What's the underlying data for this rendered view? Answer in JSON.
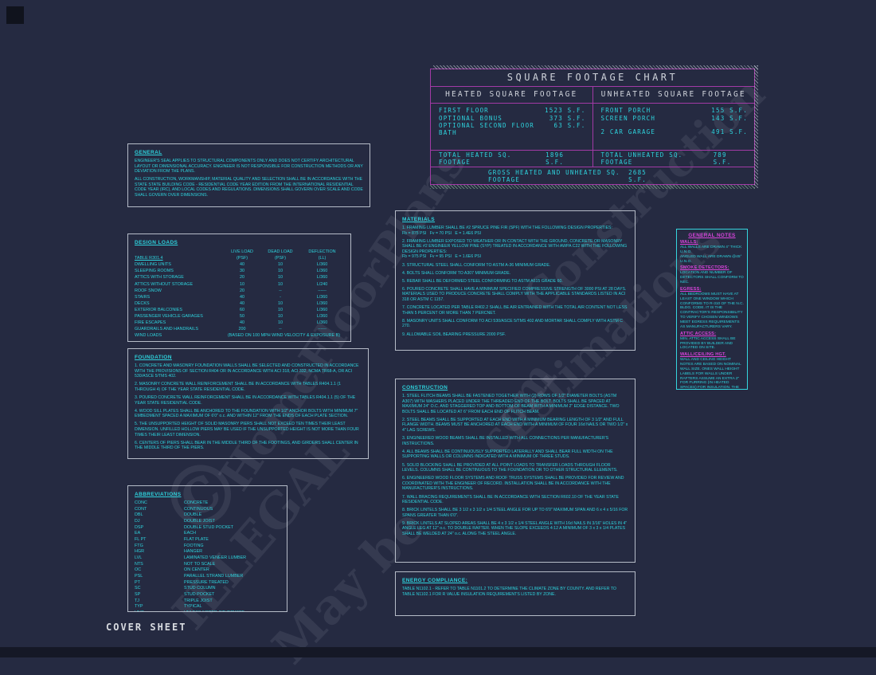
{
  "page": {
    "sheet_label": "COVER SHEET"
  },
  "watermark": {
    "fragments": [
      "©",
      "ILLEGAL",
      "HomeFloorPlans",
      "com",
      "Construction",
      "Estimations",
      "May be"
    ]
  },
  "sqft_chart": {
    "title": "SQUARE FOOTAGE CHART",
    "heated": {
      "header": "HEATED SQUARE FOOTAGE",
      "rows": [
        {
          "label": "FIRST FLOOR",
          "value": "1523 S.F."
        },
        {
          "label": "OPTIONAL BONUS",
          "value": "373 S.F."
        },
        {
          "label": "OPTIONAL SECOND FLOOR BATH",
          "value": "63 S.F."
        }
      ],
      "total_label": "TOTAL HEATED SQ. FOOTAGE",
      "total_value": "1896 S.F."
    },
    "unheated": {
      "header": "UNHEATED SQUARE FOOTAGE",
      "rows": [
        {
          "label": "FRONT PORCH",
          "value": "155 S.F."
        },
        {
          "label": "SCREEN PORCH",
          "value": "143 S.F."
        },
        {
          "label": "2 CAR GARAGE",
          "value": "491 S.F."
        }
      ],
      "total_label": "TOTAL UNHEATED SQ. FOOTAGE",
      "total_value": "789 S.F."
    },
    "gross_label": "GROSS HEATED AND UNHEATED SQ. FOOTAGE",
    "gross_value": "2685 S.F."
  },
  "general": {
    "title": "GENERAL",
    "paragraphs": [
      "ENGINEER'S SEAL APPLIES TO STRUCTURAL COMPONENTS ONLY AND DOES NOT CERTIFY ARCHITECTURAL LAYOUT OR DIMENSIONAL ACCURACY.  ENGINEER IS NOT RESPONSIBLE FOR CONSTRUCTION METHODS OR ANY DEVIATION FROM THE PLANS.",
      "ALL CONSTRUCTION, WORKMANSHIP, MATERIAL QUALITY AND SELECTION SHALL BE IN ACCORDANCE WITH THE STATE STATE BUILDING CODE - RESIDENTIAL CODE YEAR EDITION FROM THE INTERNATIONAL RESIDENTIAL CODE YEAR (IRC), AND LOCAL CODES AND REGULATIONS.  DIMENSIONS SHALL GOVERN OVER SCALE AND CODE SHALL GOVERN OVER DIMENSIONS."
    ]
  },
  "design_loads": {
    "title": "DESIGN LOADS",
    "ref": "TABLE R301.4",
    "col_headers": [
      "LIVE LOAD",
      "DEAD LOAD",
      "DEFLECTION"
    ],
    "col_subheaders": [
      "(PSF)",
      "(PSF)",
      "(LL)"
    ],
    "rows": [
      [
        "DWELLING UNITS",
        "40",
        "10",
        "L/360"
      ],
      [
        "SLEEPING ROOMS",
        "30",
        "10",
        "L/360"
      ],
      [
        "ATTICS WITH STORAGE",
        "20",
        "10",
        "L/360"
      ],
      [
        "ATTICS WITHOUT STORAGE",
        "10",
        "10",
        "L/240"
      ],
      [
        "ROOF SNOW",
        "20",
        "--",
        "------"
      ],
      [
        "STAIRS",
        "40",
        "-",
        "L/360"
      ],
      [
        "DECKS",
        "40",
        "10",
        "L/360"
      ],
      [
        "EXTERIOR BALCONIES",
        "60",
        "10",
        "L/360"
      ],
      [
        "PASSENGER VEHICLE GARAGES",
        "50",
        "10",
        "L/360"
      ],
      [
        "FIRE ESCAPES",
        "40",
        "10",
        "L/360"
      ],
      [
        "GUARDRAILS AND HANDRAILS",
        "200",
        "--",
        "------"
      ]
    ],
    "wind": [
      "WIND LOADS",
      "(BASED ON 100 MPH WIND VELOCITY & EXPOSURE B)"
    ]
  },
  "foundation": {
    "title": "FOUNDATION",
    "paragraphs": [
      "1. CONCRETE AND MASONRY FOUNDATION WALLS SHALL BE SELECTED AND CONSTRUCTED IN ACCORDANCE WITH THE PROVISIONS OF SECTION R404 OR IN ACCORDANCE WITH ACI 318, ACI 332, NCMA TR68-A, OR ACI 530/ASCE 5/TMS 402.",
      "2. MASONRY CONCRETE WALL REINFORCEMENT SHALL BE IN ACCORDANCE WITH TABLES R404.1.1 (1 THROUGH 4) OF THE YEAR STATE RESIDENTIAL CODE.",
      "3. POURED CONCRETE WALL REINFORCEMENT SHALL BE IN ACCORDANCE WITH TABLES R404.1.1 (5) OF THE YEAR STATE RESIDENTIAL CODE.",
      "4. WOOD SILL PLATES SHALL BE ANCHORED TO THE FOUNDATION WITH 1/2\" ANCHOR BOLTS WITH MINIMUM 7\" EMBEDMENT SPACED A MAXIMUM OF 6'0\" o.c. AND WITHIN 12\" FROM THE ENDS OF EACH PLATE SECTION.",
      "5. THE UNSUPPORTED HEIGHT OF SOLID MASONRY PIERS SHALL NOT EXCEED TEN TIMES THEIR LEAST DIMENSION.  UNFILLED HOLLOW PIERS MAY BE USED IF THE UNSUPPORTED HEIGHT IS NOT MORE THAN FOUR TIMES THEIR LEAST DIMENSION.",
      "6. CENTERS OF PIERS SHALL BEAR IN THE MIDDLE THIRD OF THE FOOTINGS, AND GIRDERS SHALL CENTER IN THE MIDDLE THIRD OF THE PIERS."
    ]
  },
  "abbreviations": {
    "title": "ABBREVIATIONS",
    "rows": [
      [
        "CONC",
        "CONCRETE"
      ],
      [
        "CONT",
        "CONTINUOUS"
      ],
      [
        "DBL",
        "DOUBLE"
      ],
      [
        "DJ",
        "DOUBLE JOIST"
      ],
      [
        "DSP",
        "DOUBLE STUD POCKET"
      ],
      [
        "EA",
        "EACH"
      ],
      [
        "FL PT",
        "FLAT PLATE"
      ],
      [
        "FTG",
        "FOOTING"
      ],
      [
        "HGR",
        "HANGER"
      ],
      [
        "LVL",
        "LAMINATED VENEER LUMBER"
      ],
      [
        "NTS",
        "NOT TO SCALE"
      ],
      [
        "OC",
        "ON CENTER"
      ],
      [
        "PSL",
        "PARALLEL STRAND LUMBER"
      ],
      [
        "PT",
        "PRESSURE TREATED"
      ],
      [
        "SC",
        "STUD COLUMN"
      ],
      [
        "SP",
        "STUD POCKET"
      ],
      [
        "TJ",
        "TRIPLE JOIST"
      ],
      [
        "TYP",
        "TYPICAL"
      ],
      [
        "UNO",
        "UNLESS NOTED OTHERWISE"
      ]
    ]
  },
  "materials": {
    "title": "MATERIALS",
    "paragraphs": [
      "1. FRAMING LUMBER SHALL BE #2 SPRUCE PINE FIR (SPF) WITH THE FOLLOWING DESIGN PROPERTIES:\nFb = 875 PSI   Fv = 70 PSI   E = 1.4E6 PSI",
      "2. FRAMING LUMBER EXPOSED TO WEATHER OR IN CONTACT WITH THE GROUND, CONCRETE OR MASONRY SHALL BE #2 ENGINEER YELLOW PINE (SYP) TREATED IN ACCORDANCE WITH AWPA C22 WITH THE FOLLOWING DESIGN PROPERTIES:\nFb = 975 PSI   Fv = 95 PSI   E = 1.6E6 PSI",
      "3. STRUCTURAL STEEL SHALL CONFORM TO ASTM A-36 MINIMUM GRADE.",
      "4. BOLTS SHALL CONFORM TO A307 MINIMUM GRADE.",
      "5. REBAR SHALL BE DEFORMED STEEL CONFORMING TO ASTM A615 GRADE 60.",
      "6. POURED CONCRETE SHALL HAVE A MINIMUM SPECIFIED COMPRESSIVE STRENGTH OF 3000 PSI AT 28 DAYS.  MATERIALS USED TO PRODUCE CONCRETE SHALL COMPLY WITH THE APPLICABLE STANDARDS LISTED IN ACI 318 OR ASTM C 1157.",
      "7. CONCRETE LOCATED PER TABLE R402.2 SHALL BE AIR ENTRAINED WITH THE TOTAL AIR CONTENT NOT LESS THAN 5 PERCENT OR MORE THAN 7 PERCNET.",
      "8. MASONRY UNITS SHALL CONFORM TO ACI 530/ASCE 5/TMS 402 AND MORTAR SHALL COMPLY WITH ASTM C 270.",
      "9. ALLOWABLE SOIL BEARING PRESSURE 2000 PSF."
    ]
  },
  "construction": {
    "title": "CONSTRUCTION",
    "paragraphs": [
      "1. STEEL FLITCH BEAMS SHALL BE FASTENED TOGETHER WITH (2) ROWS OF 1/2\" DIAMETER BOLTS (ASTM A307) WITH WASHERS PLACED UNDER THE THREADED END OF THE BOLT.  BOLTS SHALL BE SPACED AT MAXIMUM 24\" O.C. AND STAGGERED TOP AND BOTTOM OF BEAM WITH A MINIMUM 2\" EDGE DISTANCE.  TWO BOLTS SHALL BE LOCATED AT 6\" FROM EACH END OF FLITCH BEAM.",
      "2. STEEL BEAMS SHALL BE SUPPORTED AT EACH END WITH A MINIMUM BEARING LENGTH OF 3 1/2\" AND FULL FLANGE WIDTH.  BEAMS MUST BE ANCHORED AT EACH END WITH A MINIMUM OF FOUR 16d NAILS OR TWO 1/2\" x 4\" LAG SCREWS.",
      "3. ENGINEERED WOOD BEAMS SHALL BE INSTALLED WITH ALL CONNECTIONS PER MANUFACTURER'S INSTRUCTIONS.",
      "4. ALL BEAMS SHALL BE CONTINUOUSLY SUPPORTED LATERALLY AND SHALL BEAR FULL WIDTH ON THE SUPPORTING WALLS OR COLUMNS INDICATED WITH A MINIMUM OF THREE STUDS.",
      "5. SOLID BLOCKING SHALL BE PROVIDED AT ALL POINT LOADS TO TRANSFER LOADS THROUGH FLOOR LEVELS.  COLUMNS SHALL BE CONTINUOUS TO THE FOUNDATION OR TO OTHER STRUCTURAL ELEMENTS.",
      "6. ENGINEERED WOOD FLOOR SYSTEMS AND ROOF TRUSS SYSTEMS SHALL BE PROVIDED FOR REVIEW AND COORDINATED WITH THE ENGINEER OF RECORD.  INSTALLATION SHALL BE IN ACCORDANCE WITH THE MANUFACTURER'S INSTRUCTIONS.",
      "7. WALL BRACING REQUIREMENTS SHALL BE IN ACCORDANCE WITH SECTION R602.10 OF THE YEAR STATE RESIDENTIAL CODE.",
      "8. BRICK LINTELS SHALL BE 3 1/2 x 3 1/2 x 1/4 STEEL ANGLE FOR UP TO 6'0\" MAXIMUM SPAN AND 6 x 4 x 5/16 FOR SPANS GREATER THAN 6'0\".",
      "9. BRICK LINTELS AT SLOPED AREAS SHALL BE 4 x 3 1/2 x 1/4 STEEL ANGLE WITH 16d NAILS IN 3/16\" HOLES IN 4\" ANGLE LEG AT 12\" o.c. TO DOUBLE RAFTER.  WHEN THE SLOPE EXCEEDS 4:12 A MINIMUM OF 3 x 3 x 1/4 PLATES SHALL BE WELDED AT 24\" o.c. ALONG THE STEEL ANGLE."
    ]
  },
  "energy": {
    "title": "ENERGY COMPLIANCE:",
    "paragraphs": [
      "TABLE N1102.1 - REFER TO TABLE N1101.2 TO DETERMINE THE CLIMATE ZONE BY COUNTY.  AND REFER TO TABLE N1102.1 FOR R VALUE INSULATION REQUIREMENTS LISTED BY ZONE."
    ]
  },
  "general_notes": {
    "title": "GENERAL NOTES",
    "sections": [
      {
        "heading": "WALLS:",
        "body": "ALL WALLS ARE DRAWN 4\" THICK U.N.O.\nANGLED WALL ARE DRAWN @45° U.N.O."
      },
      {
        "heading": "SMOKE DETECTORS:",
        "body": "LOCATION AND NUMBER OF DETECTORS SHALL CONFORM TO NEC."
      },
      {
        "heading": "EGRESS:",
        "body": "ALL BEDROOMS MUST HAVE AT LEAST ONE WINDOW WHICH CONFORMS TO R-310 OF THE N.C. BLDG. CODE. IT IS THE CONTRACTOR'S RESPONSIBILITY TO VERIFY CHOSEN WINDOWS MEET EGRESS REQUIREMENTS AS MANUFACTURERS VARY."
      },
      {
        "heading": "ATTIC ACCESS:",
        "body": "MIN. ATTIC ACCESS SHALL BE PROVIDED BY BUILDER AND LOCATED ON SITE."
      },
      {
        "heading": "WALL/CEILING HGT.",
        "body": "WALL AND CEILING HEIGHT NOTES ARE BASED ON NOMINAL WALL SIZE. ONES WALL HEIGHT LABELS FOR WALLS UNDER RAFTERS ASSUME AN EXTRA 2\" FOR FURRING (IN HEATED SPACES) FOR INSULATION. THE WALL HEIGHT REFERS TO THE HGT. FROM THE FLOOR DECKING TO THE BOTTOM OF THE FURRING."
      }
    ]
  },
  "colors": {
    "background": "#252a41",
    "cad_cyan": "#2ed3dd",
    "cad_magenta_border": "#a23aa6",
    "notes_magenta": "#d944dc",
    "panel_border": "#b6bcc8",
    "header_silver": "#cfd3db"
  }
}
